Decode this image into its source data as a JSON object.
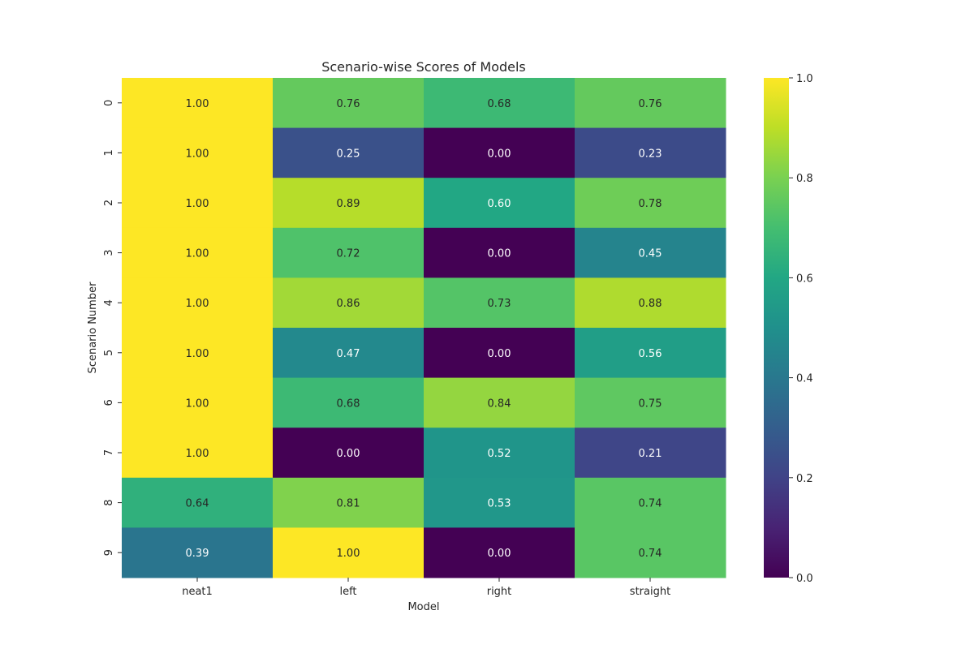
{
  "chart_data": {
    "type": "heatmap",
    "title": "Scenario-wise Scores of Models",
    "xlabel": "Model",
    "ylabel": "Scenario Number",
    "columns": [
      "neat1",
      "left",
      "right",
      "straight"
    ],
    "rows": [
      "0",
      "1",
      "2",
      "3",
      "4",
      "5",
      "6",
      "7",
      "8",
      "9"
    ],
    "values": [
      [
        1.0,
        0.76,
        0.68,
        0.76
      ],
      [
        1.0,
        0.25,
        0.0,
        0.23
      ],
      [
        1.0,
        0.89,
        0.6,
        0.78
      ],
      [
        1.0,
        0.72,
        0.0,
        0.45
      ],
      [
        1.0,
        0.86,
        0.73,
        0.88
      ],
      [
        1.0,
        0.47,
        0.0,
        0.56
      ],
      [
        1.0,
        0.68,
        0.84,
        0.75
      ],
      [
        1.0,
        0.0,
        0.52,
        0.21
      ],
      [
        0.64,
        0.81,
        0.53,
        0.74
      ],
      [
        0.39,
        1.0,
        0.0,
        0.74
      ]
    ],
    "annotation_format": "0.00",
    "colormap": "viridis",
    "vmin": 0.0,
    "vmax": 1.0,
    "colorbar_ticks": [
      "0.0",
      "0.2",
      "0.4",
      "0.6",
      "0.8",
      "1.0"
    ],
    "colorbar_tick_values": [
      0.0,
      0.2,
      0.4,
      0.6,
      0.8,
      1.0
    ]
  }
}
